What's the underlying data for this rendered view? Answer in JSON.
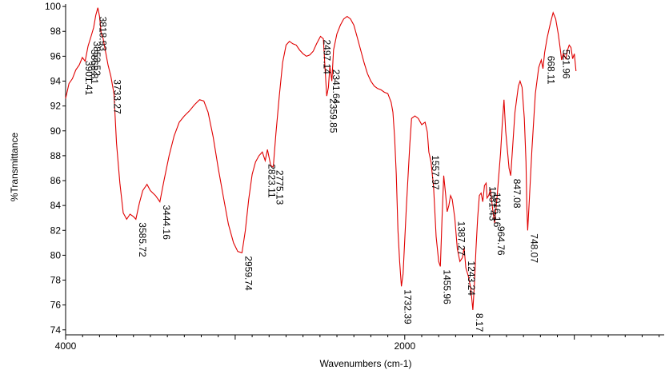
{
  "chart_data": {
    "type": "line",
    "title": "",
    "xlabel": "Wavenumbers (cm-1)",
    "ylabel": "%Transmittance",
    "x_reversed": true,
    "xlim": [
      4000,
      470
    ],
    "ylim": [
      73.6,
      100.2
    ],
    "x_ticks": [
      4000,
      2000
    ],
    "y_ticks": [
      74,
      76,
      78,
      80,
      82,
      84,
      86,
      88,
      90,
      92,
      94,
      96,
      98,
      100
    ],
    "grid": false,
    "color": "#e00000",
    "series": [
      {
        "points": [
          [
            4000,
            92.6
          ],
          [
            3980,
            93.8
          ],
          [
            3960,
            94.2
          ],
          [
            3940,
            94.9
          ],
          [
            3920,
            95.3
          ],
          [
            3901.41,
            95.9
          ],
          [
            3885,
            95.6
          ],
          [
            3868,
            96.8
          ],
          [
            3850,
            97.6
          ],
          [
            3835,
            98.3
          ],
          [
            3822,
            99.3
          ],
          [
            3810,
            99.9
          ],
          [
            3800,
            99.2
          ],
          [
            3790,
            97.8
          ],
          [
            3780,
            97.5
          ],
          [
            3765,
            96.4
          ],
          [
            3750,
            95.3
          ],
          [
            3733.27,
            94.4
          ],
          [
            3715,
            93.0
          ],
          [
            3700,
            89.0
          ],
          [
            3680,
            85.8
          ],
          [
            3660,
            83.4
          ],
          [
            3640,
            82.9
          ],
          [
            3620,
            83.3
          ],
          [
            3600,
            83.1
          ],
          [
            3585.72,
            82.9
          ],
          [
            3565,
            84.2
          ],
          [
            3545,
            85.2
          ],
          [
            3520,
            85.7
          ],
          [
            3500,
            85.2
          ],
          [
            3470,
            84.8
          ],
          [
            3444.16,
            84.3
          ],
          [
            3420,
            86.0
          ],
          [
            3390,
            88.0
          ],
          [
            3360,
            89.6
          ],
          [
            3330,
            90.7
          ],
          [
            3300,
            91.2
          ],
          [
            3270,
            91.6
          ],
          [
            3240,
            92.1
          ],
          [
            3210,
            92.5
          ],
          [
            3185,
            92.4
          ],
          [
            3160,
            91.5
          ],
          [
            3130,
            89.5
          ],
          [
            3100,
            87.0
          ],
          [
            3070,
            84.7
          ],
          [
            3040,
            82.5
          ],
          [
            3010,
            81.0
          ],
          [
            2985,
            80.3
          ],
          [
            2959.74,
            80.2
          ],
          [
            2940,
            82.0
          ],
          [
            2920,
            84.5
          ],
          [
            2900,
            86.5
          ],
          [
            2880,
            87.5
          ],
          [
            2860,
            88.0
          ],
          [
            2840,
            88.3
          ],
          [
            2823.11,
            87.6
          ],
          [
            2810,
            88.5
          ],
          [
            2790,
            87.2
          ],
          [
            2775.13,
            87.1
          ],
          [
            2760,
            89.8
          ],
          [
            2740,
            92.8
          ],
          [
            2720,
            95.5
          ],
          [
            2700,
            96.9
          ],
          [
            2680,
            97.2
          ],
          [
            2660,
            97.0
          ],
          [
            2640,
            96.9
          ],
          [
            2620,
            96.5
          ],
          [
            2600,
            96.2
          ],
          [
            2580,
            96.0
          ],
          [
            2560,
            96.1
          ],
          [
            2540,
            96.4
          ],
          [
            2520,
            97.0
          ],
          [
            2497.14,
            97.6
          ],
          [
            2480,
            97.4
          ],
          [
            2470,
            95.0
          ],
          [
            2460,
            92.8
          ],
          [
            2450,
            93.5
          ],
          [
            2441.64,
            95.2
          ],
          [
            2430,
            94.0
          ],
          [
            2420,
            96.5
          ],
          [
            2400,
            97.8
          ],
          [
            2380,
            98.5
          ],
          [
            2360,
            99.0
          ],
          [
            2340,
            99.2
          ],
          [
            2320,
            99.0
          ],
          [
            2300,
            98.5
          ],
          [
            2280,
            97.5
          ],
          [
            2260,
            96.5
          ],
          [
            2240,
            95.5
          ],
          [
            2220,
            94.6
          ],
          [
            2200,
            94.0
          ],
          [
            2180,
            93.6
          ],
          [
            2160,
            93.4
          ],
          [
            2140,
            93.3
          ],
          [
            2120,
            93.1
          ],
          [
            2100,
            93.0
          ],
          [
            2080,
            92.3
          ],
          [
            2070,
            91.5
          ],
          [
            2060,
            89.5
          ],
          [
            2050,
            86.5
          ],
          [
            2040,
            82.0
          ],
          [
            2030,
            79.5
          ],
          [
            2020,
            77.5
          ],
          [
            2010,
            78.5
          ],
          [
            1990,
            84.0
          ],
          [
            1970,
            89.0
          ],
          [
            1960,
            91.0
          ],
          [
            1940,
            91.2
          ],
          [
            1920,
            91.0
          ],
          [
            1900,
            90.5
          ],
          [
            1880,
            90.7
          ],
          [
            1867,
            89.9
          ],
          [
            1857.87,
            88.3
          ],
          [
            1845,
            87.5
          ],
          [
            1830,
            85.5
          ],
          [
            1815,
            81.5
          ],
          [
            1800,
            79.5
          ],
          [
            1790,
            79.1
          ],
          [
            1780,
            83.0
          ],
          [
            1770,
            86.4
          ],
          [
            1760,
            85.0
          ],
          [
            1750,
            83.5
          ],
          [
            1740,
            84.0
          ],
          [
            1730,
            84.8
          ],
          [
            1720,
            84.5
          ],
          [
            1705,
            83.0
          ],
          [
            1690,
            80.5
          ],
          [
            1675,
            79.5
          ],
          [
            1660,
            79.8
          ],
          [
            1650,
            80.6
          ],
          [
            1640,
            79.0
          ],
          [
            1625,
            78.3
          ],
          [
            1610,
            77.3
          ],
          [
            1598.17,
            75.6
          ],
          [
            1590,
            77.5
          ],
          [
            1580,
            80.5
          ],
          [
            1570,
            83.0
          ],
          [
            1560,
            84.8
          ],
          [
            1550,
            85.0
          ],
          [
            1540,
            84.3
          ],
          [
            1530,
            85.6
          ],
          [
            1520,
            85.8
          ],
          [
            1515,
            84.6
          ],
          [
            1505,
            84.8
          ],
          [
            1495,
            85.3
          ],
          [
            1480,
            83.5
          ],
          [
            1470,
            82.6
          ],
          [
            1455,
            84.8
          ],
          [
            1445,
            86.5
          ],
          [
            1435,
            88.2
          ],
          [
            1425,
            90.5
          ],
          [
            1415,
            92.5
          ],
          [
            1405,
            90.0
          ],
          [
            1395,
            88.5
          ],
          [
            1385,
            87.0
          ],
          [
            1375,
            86.4
          ],
          [
            1365,
            88.5
          ],
          [
            1350,
            91.5
          ],
          [
            1330,
            93.6
          ],
          [
            1320,
            94.0
          ],
          [
            1308,
            93.5
          ],
          [
            1295,
            91.0
          ],
          [
            1285,
            87.5
          ],
          [
            1280,
            83.8
          ],
          [
            1275,
            82.0
          ],
          [
            1265,
            84.5
          ],
          [
            1250,
            88.5
          ],
          [
            1230,
            93.0
          ],
          [
            1210,
            95.1
          ],
          [
            1195,
            95.7
          ],
          [
            1185,
            95.0
          ],
          [
            1175,
            96.3
          ],
          [
            1160,
            97.5
          ],
          [
            1140,
            98.7
          ],
          [
            1125,
            99.5
          ],
          [
            1110,
            99.0
          ],
          [
            1095,
            97.8
          ],
          [
            1085,
            96.8
          ],
          [
            1075,
            95.7
          ],
          [
            1065,
            96.2
          ],
          [
            1050,
            95.8
          ],
          [
            1040,
            96.5
          ],
          [
            1030,
            96.9
          ],
          [
            1020,
            96.7
          ],
          [
            1010,
            95.8
          ],
          [
            1000,
            96.2
          ],
          [
            990,
            94.8
          ]
        ]
      }
    ],
    "peak_labels": [
      {
        "text": "3901.41",
        "x": 3901.41
      },
      {
        "text": "3868.81",
        "x": 3868
      },
      {
        "text": "3853.52",
        "x": 3853
      },
      {
        "text": "3818.93",
        "x": 3818.93
      },
      {
        "text": "3733.27",
        "x": 3733.27
      },
      {
        "text": "3585.72",
        "x": 3585.72
      },
      {
        "text": "3444.16",
        "x": 3444.16
      },
      {
        "text": "2959.74",
        "x": 2959.74
      },
      {
        "text": "2823.11",
        "x": 2823.11
      },
      {
        "text": "2775.13",
        "x": 2775.13
      },
      {
        "text": "2497.14",
        "x": 2497.14
      },
      {
        "text": "2359.85",
        "x": 2459
      },
      {
        "text": "2341.64",
        "x": 2441.64
      },
      {
        "text": "1732.39",
        "x": 2020
      },
      {
        "text": "1557.97",
        "x": 1857.87
      },
      {
        "text": "1455.96",
        "x": 1790
      },
      {
        "text": "1387.27",
        "x": 1705
      },
      {
        "text": "1243.24",
        "x": 1645
      },
      {
        "text": "8.17",
        "x": 1598.17
      },
      {
        "text": "1061.43",
        "x": 1520
      },
      {
        "text": "1016.16",
        "x": 1495
      },
      {
        "text": "964.76",
        "x": 1470
      },
      {
        "text": "847.08",
        "x": 1375
      },
      {
        "text": "748.07",
        "x": 1275
      },
      {
        "text": "668.11",
        "x": 1175
      },
      {
        "text": "521.96",
        "x": 1085
      }
    ]
  }
}
